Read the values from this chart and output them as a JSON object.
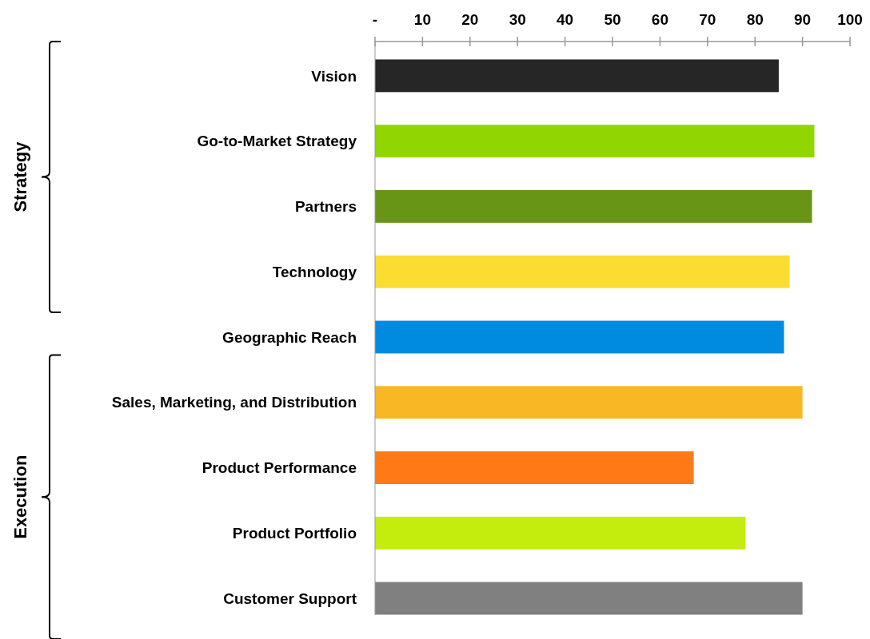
{
  "chart_data": {
    "type": "bar",
    "orientation": "horizontal",
    "categories": [
      "Vision",
      "Go-to-Market Strategy",
      "Partners",
      "Technology",
      "Geographic Reach",
      "Sales, Marketing, and Distribution",
      "Product Performance",
      "Product Portfolio",
      "Customer Support"
    ],
    "values": [
      85,
      92.5,
      92,
      87.3,
      86.1,
      90,
      67.1,
      78,
      90
    ],
    "colors": [
      "#262626",
      "#92d600",
      "#689516",
      "#fbdc31",
      "#008ae0",
      "#f8b724",
      "#ff7917",
      "#c4ec0c",
      "#808080"
    ],
    "xlim": [
      0,
      100
    ],
    "xticks": [
      {
        "value": 0,
        "label": "-"
      },
      10,
      20,
      30,
      40,
      50,
      60,
      70,
      80,
      90,
      100
    ],
    "annotations": [
      "Strategy",
      "Execution"
    ],
    "grid": false
  }
}
